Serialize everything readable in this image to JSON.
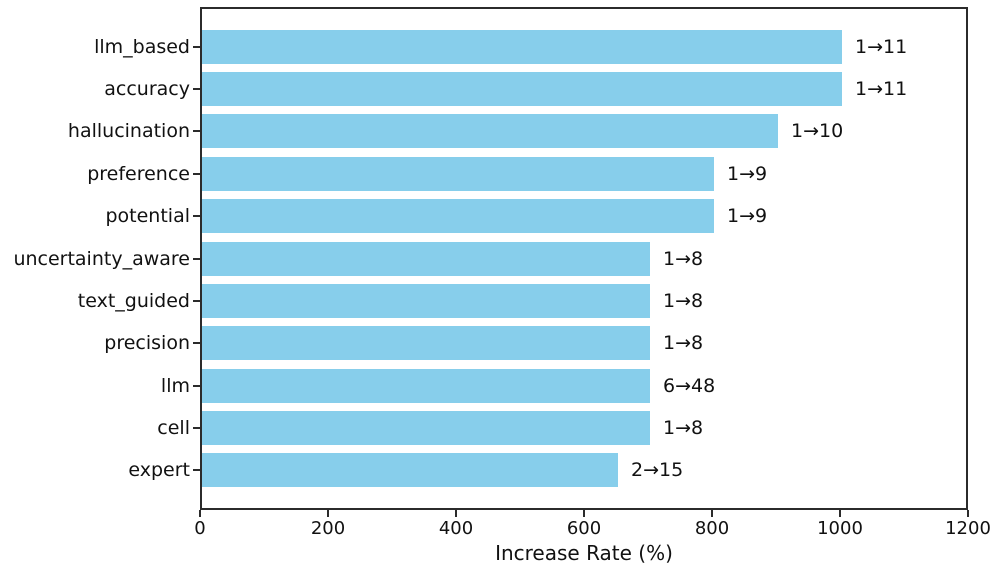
{
  "chart_data": {
    "type": "bar",
    "orientation": "horizontal",
    "title": "",
    "xlabel": "Increase Rate (%)",
    "ylabel": "",
    "categories": [
      "llm_based",
      "accuracy",
      "hallucination",
      "preference",
      "potential",
      "uncertainty_aware",
      "text_guided",
      "precision",
      "llm",
      "cell",
      "expert"
    ],
    "values": [
      1000,
      1000,
      900,
      800,
      800,
      700,
      700,
      700,
      700,
      700,
      650
    ],
    "bar_labels": [
      "1→11",
      "1→11",
      "1→10",
      "1→9",
      "1→9",
      "1→8",
      "1→8",
      "1→8",
      "6→48",
      "1→8",
      "2→15"
    ],
    "xlim": [
      0,
      1200
    ],
    "xticks": [
      0,
      200,
      400,
      600,
      800,
      1000,
      1200
    ],
    "bar_color": "#87CEEB",
    "grid": false,
    "legend": null
  }
}
